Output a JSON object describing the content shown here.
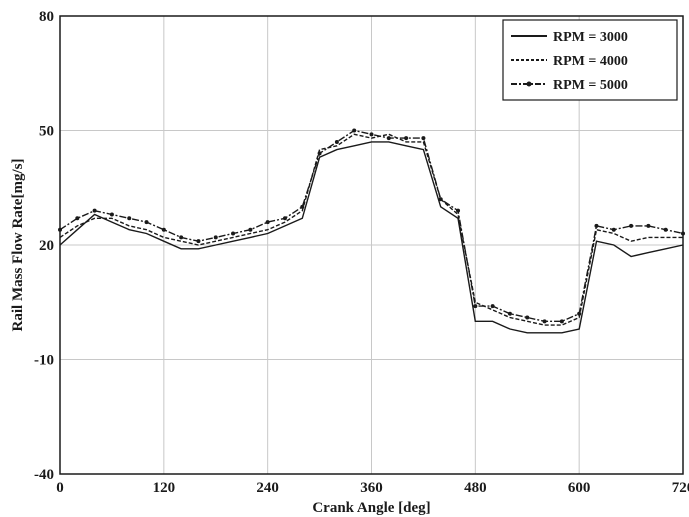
{
  "chart_data": {
    "type": "line",
    "title": "",
    "xlabel": "Crank Angle [deg]",
    "ylabel": "Rail Mass Flow Rate[mg/s]",
    "xlim": [
      0,
      720
    ],
    "ylim": [
      -40,
      80
    ],
    "xticks": [
      0,
      120,
      240,
      360,
      480,
      600,
      720
    ],
    "yticks": [
      -40,
      -10,
      20,
      50,
      80
    ],
    "grid": true,
    "legend_position": "top-right",
    "colors": {
      "series": "#1a1a1a",
      "grid": "#c8c8c8",
      "frame": "#1a1a1a"
    },
    "series": [
      {
        "name": "RPM = 3000",
        "style": "solid",
        "x": [
          0,
          20,
          40,
          60,
          80,
          100,
          120,
          140,
          160,
          180,
          200,
          220,
          240,
          260,
          280,
          300,
          320,
          340,
          360,
          380,
          400,
          420,
          440,
          460,
          480,
          500,
          520,
          540,
          560,
          580,
          600,
          620,
          640,
          660,
          680,
          700,
          720
        ],
        "y": [
          20,
          24,
          28,
          26,
          24,
          23,
          21,
          19,
          19,
          20,
          21,
          22,
          23,
          25,
          27,
          43,
          45,
          46,
          47,
          47,
          46,
          45,
          30,
          27,
          0,
          0,
          -2,
          -3,
          -3,
          -3,
          -2,
          21,
          20,
          17,
          18,
          19,
          20
        ]
      },
      {
        "name": "RPM = 4000",
        "style": "dashed",
        "x": [
          0,
          20,
          40,
          60,
          80,
          100,
          120,
          140,
          160,
          180,
          200,
          220,
          240,
          260,
          280,
          300,
          320,
          340,
          360,
          380,
          400,
          420,
          440,
          460,
          480,
          500,
          520,
          540,
          560,
          580,
          600,
          620,
          640,
          660,
          680,
          700,
          720
        ],
        "y": [
          22,
          25,
          27,
          27,
          25,
          24,
          22,
          21,
          20,
          21,
          22,
          23,
          24,
          26,
          29,
          45,
          46,
          49,
          48,
          49,
          47,
          47,
          32,
          28,
          5,
          3,
          1,
          0,
          -1,
          -1,
          1,
          24,
          23,
          21,
          22,
          22,
          22
        ]
      },
      {
        "name": "RPM = 5000",
        "style": "dash-dot-marker",
        "x": [
          0,
          20,
          40,
          60,
          80,
          100,
          120,
          140,
          160,
          180,
          200,
          220,
          240,
          260,
          280,
          300,
          320,
          340,
          360,
          380,
          400,
          420,
          440,
          460,
          480,
          500,
          520,
          540,
          560,
          580,
          600,
          620,
          640,
          660,
          680,
          700,
          720
        ],
        "y": [
          24,
          27,
          29,
          28,
          27,
          26,
          24,
          22,
          21,
          22,
          23,
          24,
          26,
          27,
          30,
          44,
          47,
          50,
          49,
          48,
          48,
          48,
          32,
          29,
          4,
          4,
          2,
          1,
          0,
          0,
          2,
          25,
          24,
          25,
          25,
          24,
          23
        ]
      }
    ]
  }
}
